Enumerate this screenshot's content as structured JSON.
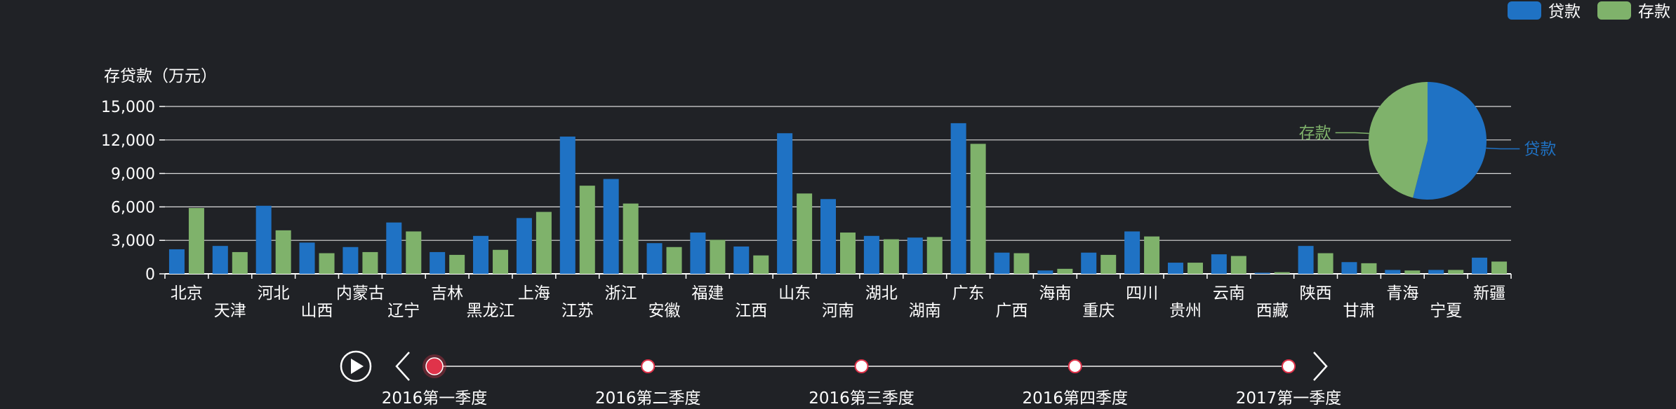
{
  "chart_data": {
    "type": "bar",
    "ylabel": "存贷款（万元）",
    "ylim": [
      0,
      15000
    ],
    "yticks": [
      "0",
      "3,000",
      "6,000",
      "9,000",
      "12,000",
      "15,000"
    ],
    "ytick_values": [
      0,
      3000,
      6000,
      9000,
      12000,
      15000
    ],
    "grid": true,
    "legend_position": "top-right",
    "categories": [
      "北京",
      "天津",
      "河北",
      "山西",
      "内蒙古",
      "辽宁",
      "吉林",
      "黑龙江",
      "上海",
      "江苏",
      "浙江",
      "安徽",
      "福建",
      "江西",
      "山东",
      "河南",
      "湖北",
      "湖南",
      "广东",
      "广西",
      "海南",
      "重庆",
      "四川",
      "贵州",
      "云南",
      "西藏",
      "陕西",
      "甘肃",
      "青海",
      "宁夏",
      "新疆"
    ],
    "series": [
      {
        "name": "贷款",
        "color": "#1f72c4",
        "values": [
          2200,
          2500,
          6100,
          2800,
          2400,
          4600,
          1950,
          3400,
          5000,
          12300,
          8500,
          2750,
          3700,
          2450,
          12600,
          6700,
          3400,
          3250,
          13500,
          1900,
          300,
          1900,
          3800,
          1000,
          1750,
          100,
          2500,
          1050,
          350,
          350,
          1450
        ]
      },
      {
        "name": "存款",
        "color": "#7fb26b",
        "values": [
          5900,
          1950,
          3900,
          1850,
          1950,
          3800,
          1700,
          2150,
          5550,
          7900,
          6300,
          2400,
          3050,
          1650,
          7200,
          3700,
          3100,
          3300,
          11650,
          1850,
          450,
          1700,
          3350,
          1000,
          1600,
          150,
          1850,
          950,
          300,
          350,
          1100
        ]
      }
    ],
    "pie": {
      "type": "pie",
      "slices": [
        {
          "name": "贷款",
          "value": 54,
          "color": "#1f72c4"
        },
        {
          "name": "存款",
          "value": 46,
          "color": "#7fb26b"
        }
      ]
    }
  },
  "legend": {
    "items": [
      {
        "label": "贷款",
        "color": "#1f72c4"
      },
      {
        "label": "存款",
        "color": "#7fb26b"
      }
    ]
  },
  "timeline": {
    "labels": [
      "2016第一季度",
      "2016第二季度",
      "2016第三季度",
      "2016第四季度",
      "2017第一季度"
    ],
    "current_index": 0,
    "play_icon": "play-icon",
    "prev_icon": "chevron-left-icon",
    "next_icon": "chevron-right-icon",
    "accent_color": "#e0334a"
  }
}
